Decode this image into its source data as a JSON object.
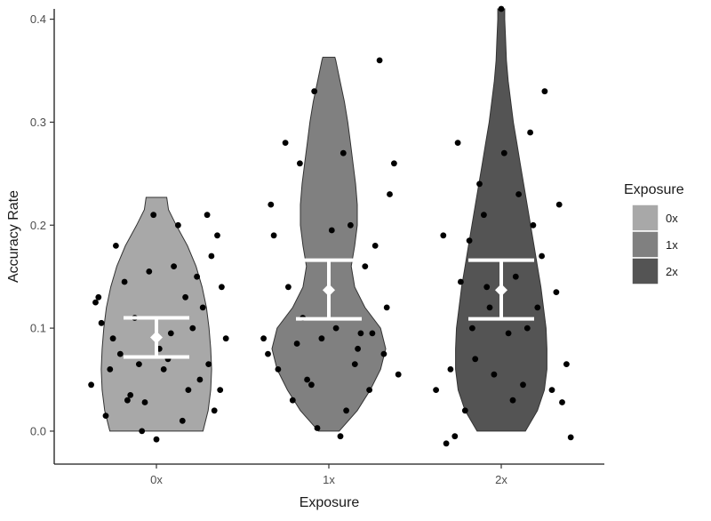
{
  "chart_data": {
    "type": "violin",
    "title": "",
    "xlabel": "Exposure",
    "ylabel": "Accuracy Rate",
    "ylim": [
      -0.032,
      0.41
    ],
    "yticks": [
      0.0,
      0.1,
      0.2,
      0.3,
      0.4
    ],
    "ytick_labels": [
      "0.0",
      "0.1",
      "0.2",
      "0.3",
      "0.4"
    ],
    "categories": [
      "0x",
      "1x",
      "2x"
    ],
    "grid": false,
    "legend": {
      "title": "Exposure",
      "position": "right",
      "entries": [
        "0x",
        "1x",
        "2x"
      ]
    },
    "colors": {
      "0x": "#a8a8a8",
      "1x": "#808080",
      "2x": "#545454",
      "outline": "#333333",
      "points": "#000000",
      "summary": "#ffffff",
      "axis": "#1a1a1a"
    },
    "series": [
      {
        "name": "0x",
        "summary": {
          "mean": 0.091,
          "lower": 0.072,
          "upper": 0.11
        },
        "density_y": [
          0.0,
          0.02,
          0.04,
          0.06,
          0.08,
          0.1,
          0.12,
          0.14,
          0.16,
          0.18,
          0.2,
          0.215,
          0.227
        ],
        "density_halfwidth": [
          0.54,
          0.6,
          0.63,
          0.64,
          0.63,
          0.61,
          0.58,
          0.53,
          0.46,
          0.36,
          0.23,
          0.14,
          0.12
        ],
        "points": [
          [
            -0.1,
            0.0
          ],
          [
            0.2,
            0.13
          ],
          [
            -0.05,
            0.155
          ],
          [
            0.35,
            0.21
          ],
          [
            -0.2,
            0.03
          ],
          [
            0.05,
            0.06
          ],
          [
            -0.3,
            0.09
          ],
          [
            0.4,
            0.02
          ],
          [
            -0.4,
            0.13
          ],
          [
            0.1,
            0.095
          ],
          [
            -0.15,
            0.11
          ],
          [
            0.3,
            0.05
          ],
          [
            0.45,
            0.14
          ],
          [
            -0.35,
            0.015
          ],
          [
            0.15,
            0.2
          ],
          [
            -0.25,
            0.075
          ],
          [
            0.25,
            0.1
          ],
          [
            -0.45,
            0.045
          ],
          [
            0.38,
            0.17
          ],
          [
            -0.08,
            0.028
          ],
          [
            0.0,
            -0.008
          ],
          [
            -0.28,
            0.18
          ],
          [
            0.22,
            0.04
          ],
          [
            -0.12,
            0.065
          ],
          [
            0.48,
            0.09
          ],
          [
            0.32,
            0.12
          ],
          [
            -0.38,
            0.105
          ],
          [
            0.12,
            0.16
          ],
          [
            -0.02,
            0.21
          ],
          [
            0.42,
            0.19
          ],
          [
            0.08,
            0.07
          ],
          [
            -0.18,
            0.035
          ],
          [
            0.28,
            0.15
          ],
          [
            -0.42,
            0.125
          ],
          [
            0.18,
            0.01
          ],
          [
            -0.32,
            0.06
          ],
          [
            0.02,
            0.08
          ],
          [
            0.36,
            0.065
          ],
          [
            -0.22,
            0.145
          ],
          [
            0.44,
            0.04
          ]
        ]
      },
      {
        "name": "1x",
        "summary": {
          "mean": 0.137,
          "lower": 0.109,
          "upper": 0.166
        },
        "density_y": [
          0.0,
          0.02,
          0.04,
          0.06,
          0.08,
          0.1,
          0.12,
          0.14,
          0.16,
          0.18,
          0.2,
          0.22,
          0.24,
          0.26,
          0.28,
          0.3,
          0.32,
          0.34,
          0.36,
          0.363
        ],
        "density_halfwidth": [
          0.12,
          0.33,
          0.48,
          0.6,
          0.66,
          0.6,
          0.42,
          0.3,
          0.26,
          0.3,
          0.33,
          0.33,
          0.31,
          0.28,
          0.25,
          0.22,
          0.18,
          0.13,
          0.08,
          0.07
        ],
        "points": [
          [
            -0.1,
            0.33
          ],
          [
            0.1,
            0.27
          ],
          [
            0.35,
            0.36
          ],
          [
            -0.3,
            0.28
          ],
          [
            0.15,
            0.2
          ],
          [
            -0.2,
            0.26
          ],
          [
            0.25,
            0.16
          ],
          [
            -0.4,
            0.22
          ],
          [
            0.05,
            0.1
          ],
          [
            -0.05,
            0.09
          ],
          [
            0.3,
            0.095
          ],
          [
            -0.15,
            0.05
          ],
          [
            0.2,
            0.08
          ],
          [
            -0.25,
            0.03
          ],
          [
            0.4,
            0.12
          ],
          [
            -0.35,
            0.06
          ],
          [
            0.45,
            0.26
          ],
          [
            -0.45,
            0.09
          ],
          [
            0.12,
            0.02
          ],
          [
            -0.08,
            0.003
          ],
          [
            0.08,
            -0.005
          ],
          [
            0.28,
            0.04
          ],
          [
            -0.18,
            0.11
          ],
          [
            0.38,
            0.075
          ],
          [
            -0.38,
            0.19
          ],
          [
            0.18,
            0.065
          ],
          [
            -0.28,
            0.14
          ],
          [
            0.48,
            0.055
          ],
          [
            0.02,
            0.195
          ],
          [
            -0.12,
            0.045
          ],
          [
            0.32,
            0.18
          ],
          [
            -0.42,
            0.075
          ],
          [
            0.22,
            0.095
          ],
          [
            -0.22,
            0.085
          ],
          [
            0.42,
            0.23
          ]
        ]
      },
      {
        "name": "2x",
        "summary": {
          "mean": 0.137,
          "lower": 0.109,
          "upper": 0.166
        },
        "density_y": [
          0.0,
          0.02,
          0.04,
          0.06,
          0.08,
          0.1,
          0.12,
          0.14,
          0.16,
          0.18,
          0.2,
          0.22,
          0.24,
          0.26,
          0.28,
          0.3,
          0.32,
          0.34,
          0.36,
          0.38,
          0.4,
          0.41
        ],
        "density_halfwidth": [
          0.28,
          0.42,
          0.5,
          0.53,
          0.53,
          0.52,
          0.49,
          0.46,
          0.42,
          0.38,
          0.34,
          0.3,
          0.26,
          0.22,
          0.18,
          0.14,
          0.11,
          0.08,
          0.06,
          0.05,
          0.04,
          0.04
        ],
        "points": [
          [
            -0.3,
            0.28
          ],
          [
            0.0,
            0.41
          ],
          [
            0.3,
            0.33
          ],
          [
            -0.15,
            0.24
          ],
          [
            0.2,
            0.29
          ],
          [
            -0.4,
            0.19
          ],
          [
            0.4,
            0.22
          ],
          [
            0.1,
            0.15
          ],
          [
            -0.1,
            0.14
          ],
          [
            -0.2,
            0.1
          ],
          [
            0.25,
            0.12
          ],
          [
            -0.35,
            0.06
          ],
          [
            0.35,
            0.04
          ],
          [
            0.05,
            0.095
          ],
          [
            -0.05,
            0.055
          ],
          [
            0.15,
            0.045
          ],
          [
            -0.25,
            0.02
          ],
          [
            0.45,
            0.065
          ],
          [
            -0.45,
            0.04
          ],
          [
            -0.38,
            -0.012
          ],
          [
            0.48,
            -0.006
          ],
          [
            0.12,
            0.23
          ],
          [
            -0.12,
            0.21
          ],
          [
            0.28,
            0.17
          ],
          [
            -0.28,
            0.145
          ],
          [
            0.38,
            0.135
          ],
          [
            -0.08,
            0.12
          ],
          [
            0.18,
            0.1
          ],
          [
            -0.18,
            0.07
          ],
          [
            0.08,
            0.03
          ],
          [
            -0.32,
            -0.005
          ],
          [
            0.42,
            0.028
          ],
          [
            0.22,
            0.2
          ],
          [
            -0.22,
            0.185
          ],
          [
            0.02,
            0.27
          ]
        ]
      }
    ]
  }
}
